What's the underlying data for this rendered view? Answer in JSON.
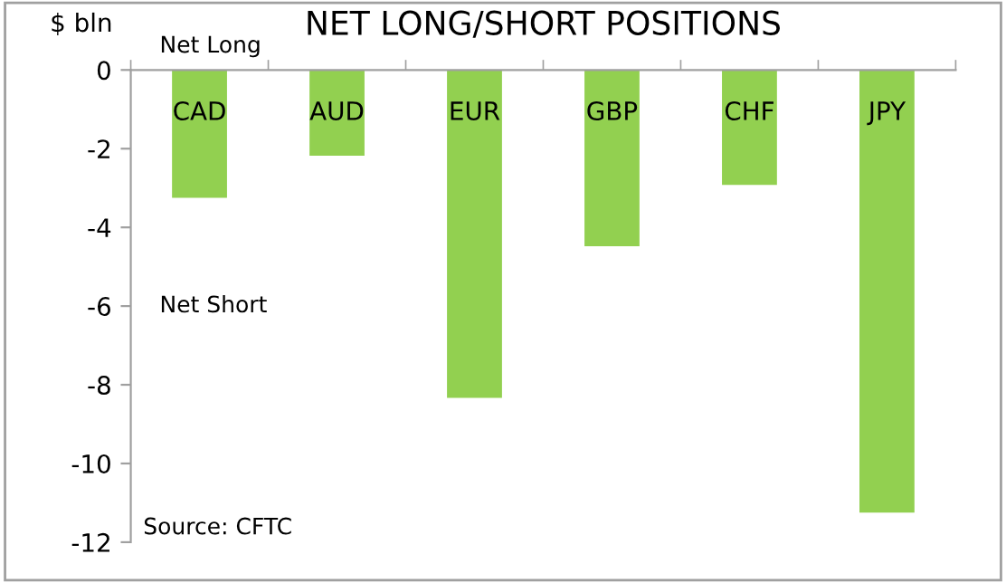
{
  "chart_data": {
    "type": "bar",
    "title": "NET LONG/SHORT POSITIONS",
    "ylabel": "$ bln",
    "categories": [
      "CAD",
      "AUD",
      "EUR",
      "GBP",
      "CHF",
      "JPY"
    ],
    "values": [
      -3.25,
      -2.18,
      -8.33,
      -4.48,
      -2.92,
      -11.25
    ],
    "color": "#92d050",
    "ylim": [
      -12,
      0
    ],
    "yticks": [
      -12,
      -10,
      -8,
      -6,
      -4,
      -2,
      0
    ],
    "grid": false,
    "annotations": [
      "Net Long",
      "Net Short",
      "Source: CFTC"
    ]
  }
}
